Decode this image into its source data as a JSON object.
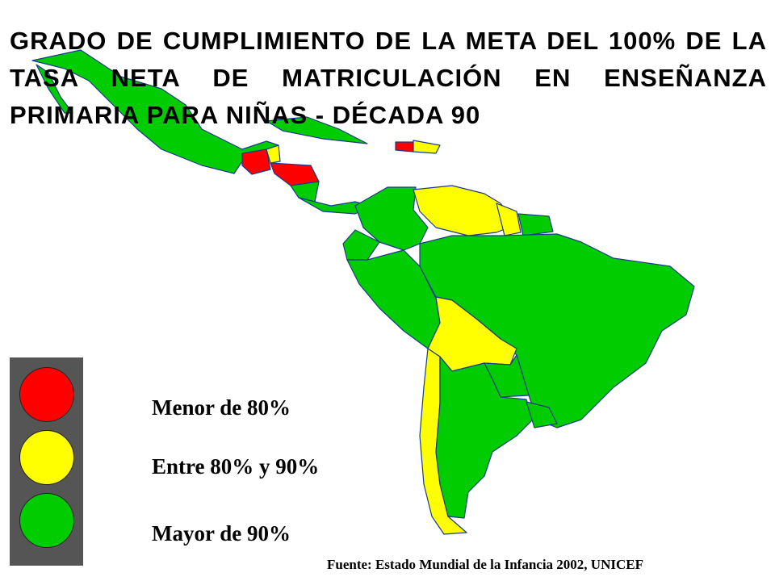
{
  "title": "GRADO DE CUMPLIMIENTO DE LA META DEL 100% DE LA TASA NETA DE MATRICULACIÓN EN ENSEÑANZA PRIMARIA PARA NIÑAS - DÉCADA 90",
  "legend": [
    {
      "label": "Menor de 80%",
      "color": "#ff0000"
    },
    {
      "label": "Entre 80% y 90%",
      "color": "#ffff00"
    },
    {
      "label": "Mayor de 90%",
      "color": "#00cc00"
    }
  ],
  "source": "Fuente: Estado Mundial de la Infancia 2002, UNICEF"
}
